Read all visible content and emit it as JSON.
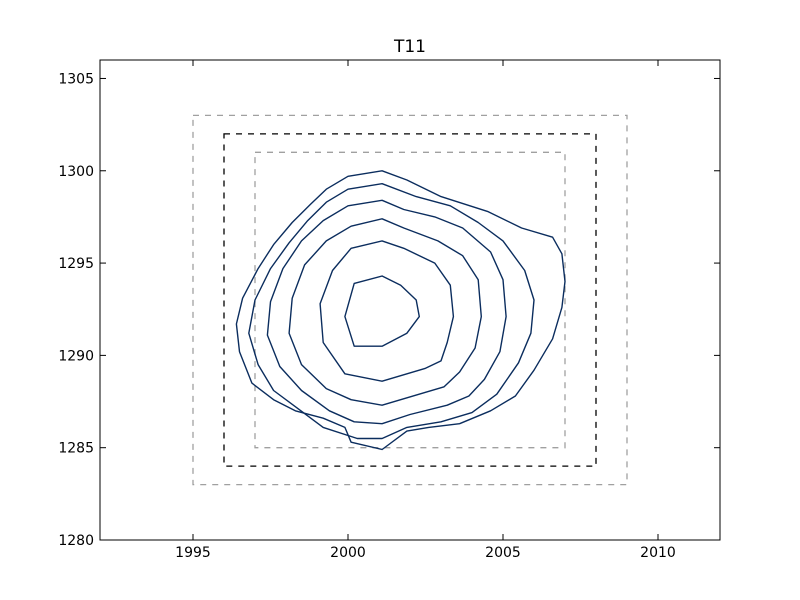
{
  "chart_data": {
    "type": "contour",
    "title": "T11",
    "xlabel": "",
    "ylabel": "",
    "xlim": [
      1992,
      2012
    ],
    "ylim": [
      1280,
      1306
    ],
    "x_ticks": [
      1995,
      2000,
      2005,
      2010
    ],
    "y_ticks": [
      1280,
      1285,
      1290,
      1295,
      1300,
      1305
    ],
    "grid": false,
    "contour_color": "#0b2d5e",
    "contours": [
      [
        [
          2001.1,
          1294.3
        ],
        [
          2000.2,
          1293.9
        ],
        [
          1999.9,
          1292.1
        ],
        [
          2000.2,
          1290.5
        ],
        [
          2001.1,
          1290.5
        ],
        [
          2001.9,
          1291.2
        ],
        [
          2002.3,
          1292.1
        ],
        [
          2002.2,
          1293.0
        ],
        [
          2001.7,
          1293.8
        ]
      ],
      [
        [
          2001.1,
          1296.2
        ],
        [
          2000.1,
          1295.8
        ],
        [
          1999.5,
          1294.6
        ],
        [
          1999.1,
          1292.8
        ],
        [
          1999.2,
          1290.7
        ],
        [
          1999.9,
          1289.0
        ],
        [
          2001.1,
          1288.6
        ],
        [
          2002.5,
          1289.3
        ],
        [
          2003.0,
          1289.7
        ],
        [
          2003.2,
          1290.7
        ],
        [
          2003.4,
          1292.1
        ],
        [
          2003.3,
          1293.8
        ],
        [
          2002.8,
          1295.0
        ],
        [
          2001.8,
          1295.8
        ]
      ],
      [
        [
          2001.1,
          1297.4
        ],
        [
          2000.1,
          1297.0
        ],
        [
          1999.3,
          1296.2
        ],
        [
          1998.6,
          1294.9
        ],
        [
          1998.2,
          1293.1
        ],
        [
          1998.1,
          1291.2
        ],
        [
          1998.5,
          1289.5
        ],
        [
          1999.3,
          1288.2
        ],
        [
          2000.1,
          1287.6
        ],
        [
          2001.1,
          1287.3
        ],
        [
          2002.5,
          1288.0
        ],
        [
          2003.1,
          1288.3
        ],
        [
          2003.6,
          1289.1
        ],
        [
          2004.1,
          1290.4
        ],
        [
          2004.3,
          1292.1
        ],
        [
          2004.2,
          1294.1
        ],
        [
          2003.7,
          1295.4
        ],
        [
          2002.9,
          1296.2
        ],
        [
          2001.8,
          1296.9
        ]
      ],
      [
        [
          2001.1,
          1298.4
        ],
        [
          2000.0,
          1298.1
        ],
        [
          1999.2,
          1297.3
        ],
        [
          1998.5,
          1296.2
        ],
        [
          1997.9,
          1294.7
        ],
        [
          1997.5,
          1292.9
        ],
        [
          1997.4,
          1291.1
        ],
        [
          1997.8,
          1289.4
        ],
        [
          1998.5,
          1288.1
        ],
        [
          1999.4,
          1287.0
        ],
        [
          2000.2,
          1286.4
        ],
        [
          2001.1,
          1286.3
        ],
        [
          2002.0,
          1286.8
        ],
        [
          2003.2,
          1287.3
        ],
        [
          2003.9,
          1287.8
        ],
        [
          2004.4,
          1288.7
        ],
        [
          2004.9,
          1290.2
        ],
        [
          2005.1,
          1292.1
        ],
        [
          2005.0,
          1294.1
        ],
        [
          2004.6,
          1295.6
        ],
        [
          2003.7,
          1296.9
        ],
        [
          2002.8,
          1297.5
        ],
        [
          2001.8,
          1297.9
        ]
      ],
      [
        [
          2001.1,
          1299.3
        ],
        [
          2000.0,
          1299.0
        ],
        [
          1999.3,
          1298.3
        ],
        [
          1998.7,
          1297.3
        ],
        [
          1998.1,
          1296.1
        ],
        [
          1997.5,
          1294.7
        ],
        [
          1997.0,
          1293.0
        ],
        [
          1996.8,
          1291.2
        ],
        [
          1997.1,
          1289.5
        ],
        [
          1997.6,
          1288.1
        ],
        [
          1998.4,
          1287.1
        ],
        [
          1999.2,
          1286.1
        ],
        [
          2000.3,
          1285.5
        ],
        [
          2001.1,
          1285.5
        ],
        [
          2001.9,
          1286.1
        ],
        [
          2003.0,
          1286.4
        ],
        [
          2004.0,
          1286.9
        ],
        [
          2004.8,
          1287.9
        ],
        [
          2005.5,
          1289.6
        ],
        [
          2005.9,
          1291.2
        ],
        [
          2006.0,
          1293.0
        ],
        [
          2005.7,
          1294.6
        ],
        [
          2005.0,
          1296.2
        ],
        [
          2004.2,
          1297.2
        ],
        [
          2003.3,
          1298.1
        ],
        [
          2002.2,
          1298.6
        ]
      ],
      [
        [
          2001.1,
          1300.0
        ],
        [
          2000.0,
          1299.7
        ],
        [
          1999.3,
          1299.0
        ],
        [
          1998.8,
          1298.2
        ],
        [
          1998.2,
          1297.2
        ],
        [
          1997.6,
          1296.0
        ],
        [
          1997.1,
          1294.7
        ],
        [
          1996.6,
          1293.1
        ],
        [
          1996.4,
          1291.7
        ],
        [
          1996.5,
          1290.2
        ],
        [
          1996.9,
          1288.5
        ],
        [
          1997.6,
          1287.6
        ],
        [
          1998.3,
          1287.0
        ],
        [
          1999.2,
          1286.6
        ],
        [
          1999.9,
          1286.1
        ],
        [
          2000.1,
          1285.3
        ],
        [
          2001.1,
          1284.9
        ],
        [
          2001.9,
          1285.9
        ],
        [
          2002.6,
          1286.1
        ],
        [
          2003.6,
          1286.3
        ],
        [
          2004.6,
          1287.0
        ],
        [
          2005.4,
          1287.8
        ],
        [
          2006.0,
          1289.2
        ],
        [
          2006.6,
          1290.9
        ],
        [
          2006.9,
          1292.6
        ],
        [
          2007.0,
          1294.0
        ],
        [
          2006.9,
          1295.5
        ],
        [
          2006.6,
          1296.4
        ],
        [
          2005.6,
          1296.9
        ],
        [
          2004.5,
          1297.8
        ],
        [
          2003.0,
          1298.6
        ],
        [
          2001.9,
          1299.5
        ]
      ]
    ],
    "dashed_boxes": [
      {
        "x0": 1995,
        "x1": 2009,
        "y0": 1283,
        "y1": 1303,
        "color": "#a0a0a0"
      },
      {
        "x0": 1996,
        "x1": 2008,
        "y0": 1284,
        "y1": 1302,
        "color": "#000000"
      },
      {
        "x0": 1997,
        "x1": 2007,
        "y0": 1285,
        "y1": 1301,
        "color": "#a0a0a0"
      }
    ]
  }
}
